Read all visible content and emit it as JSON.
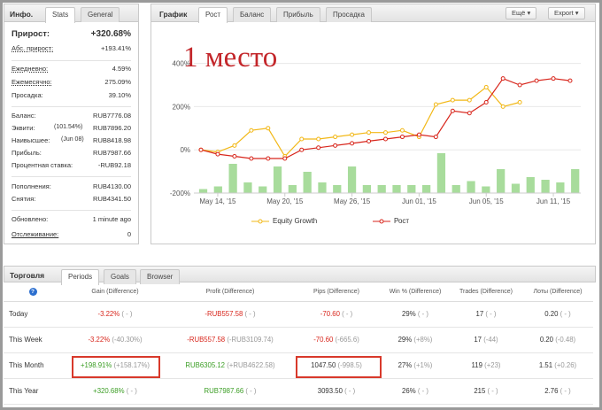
{
  "info": {
    "title": "Инфо.",
    "tabs": [
      "Stats",
      "General"
    ],
    "growth_label": "Прирост:",
    "growth_value": "+320.68%",
    "abs_label": "Абс. прирост:",
    "abs_value": "+193.41%",
    "daily_label": "Ежедневно:",
    "daily_value": "4.59%",
    "monthly_label": "Ежемесячно:",
    "monthly_value": "275.09%",
    "drawdown_label": "Просадка:",
    "drawdown_value": "39.10%",
    "balance_label": "Баланс:",
    "balance_value": "RUB7776.08",
    "equity_label": "Эквити:",
    "equity_pct": "(101.54%)",
    "equity_value": "RUB7896.20",
    "highest_label": "Наивысшее:",
    "highest_date": "(Jun 08)",
    "highest_value": "RUB8418.98",
    "profit_label": "Прибыль:",
    "profit_value": "RUB7987.66",
    "interest_label": "Процентная ставка:",
    "interest_value": "-RUB92.18",
    "deposits_label": "Пополнения:",
    "deposits_value": "RUB4130.00",
    "withdrawals_label": "Снятия:",
    "withdrawals_value": "RUB4341.50",
    "updated_label": "Обновлено:",
    "updated_value": "1 minute ago",
    "tracking_label": "Отслеживание:",
    "tracking_value": "0"
  },
  "graph": {
    "title": "График",
    "tabs": [
      "Рост",
      "Баланс",
      "Прибыль",
      "Просадка"
    ],
    "more_button": "Ещё",
    "export_button": "Export",
    "overlay_text": "1 место",
    "legend": [
      "Equity Growth",
      "Рост"
    ]
  },
  "chart_data": {
    "type": "line",
    "x": [
      "May 13 '15",
      "May 14 '15",
      "May 15 '15",
      "May 18 '15",
      "May 19 '15",
      "May 20 '15",
      "May 21 '15",
      "May 22 '15",
      "May 25 '15",
      "May 26 '15",
      "May 27 '15",
      "May 28 '15",
      "May 29 '15",
      "Jun 01 '15",
      "Jun 02 '15",
      "Jun 03 '15",
      "Jun 04 '15",
      "Jun 05 '15",
      "Jun 08 '15",
      "Jun 09 '15",
      "Jun 10 '15",
      "Jun 11 '15",
      "Jun 12 '15"
    ],
    "xticks": [
      "May 14, '15",
      "May 20, '15",
      "May 26, '15",
      "Jun 01, '15",
      "Jun 05, '15",
      "Jun 11, '15"
    ],
    "yticks": [
      "-200%",
      "0%",
      "200%",
      "400%"
    ],
    "ylim": [
      -200,
      550
    ],
    "series": [
      {
        "name": "Equity Growth",
        "color": "#f2b817",
        "values": [
          0,
          -10,
          20,
          90,
          100,
          -30,
          50,
          50,
          60,
          70,
          80,
          80,
          90,
          60,
          210,
          230,
          230,
          290,
          200,
          220,
          null,
          null,
          null
        ]
      },
      {
        "name": "Рост",
        "color": "#d8261c",
        "values": [
          0,
          -20,
          -30,
          -40,
          -40,
          -40,
          0,
          10,
          20,
          30,
          40,
          50,
          60,
          70,
          60,
          180,
          170,
          220,
          330,
          300,
          320,
          330,
          320
        ]
      }
    ],
    "bars": [
      15,
      25,
      110,
      40,
      25,
      100,
      30,
      80,
      40,
      30,
      100,
      30,
      30,
      30,
      30,
      30,
      150,
      30,
      45,
      25,
      90,
      35,
      60,
      50,
      40,
      90
    ]
  },
  "trading": {
    "title": "Торговля",
    "tabs": [
      "Periods",
      "Goals",
      "Browser"
    ],
    "headers": [
      "Gain (Difference)",
      "Profit (Difference)",
      "Pips (Difference)",
      "Win % (Difference)",
      "Trades (Difference)",
      "Лоты (Difference)"
    ],
    "rows": [
      {
        "label": "Today",
        "gain": "-3.22%",
        "gain_diff": "( - )",
        "profit": "-RUB557.58",
        "profit_diff": "( - )",
        "pips": "-70.60",
        "pips_diff": "( - )",
        "win": "29%",
        "win_diff": "( - )",
        "trades": "17",
        "trades_diff": "( - )",
        "lots": "0.20",
        "lots_diff": "( - )"
      },
      {
        "label": "This Week",
        "gain": "-3.22%",
        "gain_diff": "(-40.30%)",
        "profit": "-RUB557.58",
        "profit_diff": "(-RUB3109.74)",
        "pips": "-70.60",
        "pips_diff": "(-665.6)",
        "win": "29%",
        "win_diff": "(+8%)",
        "trades": "17",
        "trades_diff": "(-44)",
        "lots": "0.20",
        "lots_diff": "(-0.48)"
      },
      {
        "label": "This Month",
        "gain": "+198.91%",
        "gain_diff": "(+158.17%)",
        "profit": "RUB6305.12",
        "profit_diff": "(+RUB4622.58)",
        "pips": "1047.50",
        "pips_diff": "(-998.5)",
        "win": "27%",
        "win_diff": "(+1%)",
        "trades": "119",
        "trades_diff": "(+23)",
        "lots": "1.51",
        "lots_diff": "(+0.26)"
      },
      {
        "label": "This Year",
        "gain": "+320.68%",
        "gain_diff": "( - )",
        "profit": "RUB7987.66",
        "profit_diff": "( - )",
        "pips": "3093.50",
        "pips_diff": "( - )",
        "win": "26%",
        "win_diff": "( - )",
        "trades": "215",
        "trades_diff": "( - )",
        "lots": "2.76",
        "lots_diff": "( - )"
      }
    ]
  }
}
